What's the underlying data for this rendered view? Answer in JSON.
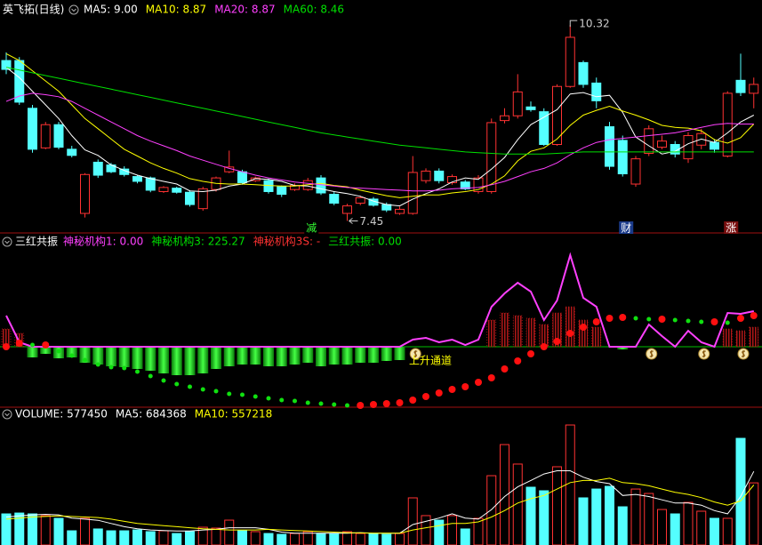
{
  "chart_data": [
    {
      "type": "candlestick",
      "title": "英飞拓(日线)",
      "open": [
        9.8,
        9.8,
        9.1,
        8.52,
        8.86,
        8.5,
        7.56,
        8.31,
        8.27,
        8.21,
        8.1,
        8.08,
        7.88,
        7.93,
        7.87,
        7.63,
        7.91,
        8.17,
        8.17,
        8.04,
        8.04,
        7.95,
        7.91,
        7.91,
        8.08,
        7.84,
        7.56,
        7.71,
        7.77,
        7.69,
        7.56,
        7.56,
        8.04,
        8.18,
        8.01,
        8.02,
        7.88,
        7.88,
        8.92,
        8.99,
        9.12,
        9.05,
        8.57,
        9.42,
        9.77,
        9.47,
        8.83,
        8.63,
        7.99,
        8.44,
        8.53,
        8.57,
        8.36,
        8.56,
        8.6,
        8.4,
        9.51,
        9.32
      ],
      "high": [
        9.92,
        9.85,
        9.15,
        8.9,
        8.9,
        8.55,
        8.15,
        8.35,
        8.3,
        8.25,
        8.12,
        8.1,
        7.96,
        7.95,
        7.9,
        7.95,
        8.1,
        8.48,
        8.2,
        8.1,
        8.07,
        7.97,
        8.0,
        8.08,
        8.12,
        7.88,
        7.7,
        7.82,
        7.8,
        7.72,
        7.66,
        8.4,
        8.22,
        8.22,
        8.13,
        8.05,
        8.12,
        8.95,
        9.1,
        9.6,
        9.2,
        9.1,
        9.45,
        10.32,
        9.8,
        9.55,
        8.9,
        8.7,
        8.4,
        8.85,
        8.7,
        8.62,
        8.75,
        8.8,
        8.65,
        9.35,
        9.9,
        9.55
      ],
      "low": [
        9.6,
        9.15,
        8.45,
        8.5,
        8.5,
        8.38,
        7.5,
        8.08,
        8.15,
        8.1,
        8.0,
        7.87,
        7.86,
        7.85,
        7.66,
        7.6,
        7.88,
        8.15,
        7.98,
        8.02,
        7.85,
        7.8,
        7.89,
        7.89,
        7.83,
        7.68,
        7.45,
        7.68,
        7.66,
        7.58,
        7.54,
        7.54,
        8.0,
        8.0,
        7.98,
        7.9,
        7.85,
        7.85,
        8.88,
        8.95,
        9.05,
        8.55,
        8.55,
        9.4,
        9.4,
        9.1,
        8.2,
        8.1,
        7.95,
        8.4,
        8.5,
        8.38,
        8.3,
        8.5,
        8.45,
        8.38,
        9.28,
        9.1
      ],
      "close": [
        9.67,
        9.19,
        8.5,
        8.86,
        8.53,
        8.41,
        8.13,
        8.12,
        8.17,
        8.13,
        8.03,
        7.9,
        7.94,
        7.87,
        7.69,
        7.92,
        8.08,
        8.24,
        8.01,
        8.08,
        7.88,
        7.84,
        7.97,
        8.04,
        7.86,
        7.71,
        7.67,
        7.79,
        7.68,
        7.61,
        7.62,
        8.16,
        8.18,
        8.04,
        8.1,
        7.92,
        8.08,
        8.89,
        8.99,
        9.34,
        9.08,
        8.57,
        9.42,
        10.14,
        9.45,
        9.21,
        8.25,
        8.14,
        8.36,
        8.8,
        8.62,
        8.43,
        8.7,
        8.73,
        8.5,
        9.32,
        9.33,
        9.45
      ],
      "up_color": "#ff3232",
      "down_color": "#54ffff",
      "ylim": [
        7.3,
        10.4
      ],
      "series": [
        {
          "name": "MA5: 9.00",
          "color": "#ffffff",
          "values": [
            9.7,
            9.55,
            9.35,
            9.15,
            8.95,
            8.7,
            8.49,
            8.41,
            8.27,
            8.19,
            8.12,
            8.07,
            8.03,
            7.99,
            7.89,
            7.88,
            7.9,
            7.96,
            7.99,
            8.07,
            8.06,
            8.03,
            7.97,
            7.96,
            7.92,
            7.88,
            7.85,
            7.81,
            7.74,
            7.69,
            7.67,
            7.77,
            7.85,
            7.92,
            8.02,
            8.08,
            8.06,
            8.21,
            8.38,
            8.64,
            8.86,
            8.97,
            9.08,
            9.31,
            9.33,
            9.27,
            9.29,
            9.04,
            8.68,
            8.55,
            8.43,
            8.47,
            8.58,
            8.65,
            8.6,
            8.74,
            8.9,
            9.0
          ]
        },
        {
          "name": "MA10: 8.87",
          "color": "#ffff00",
          "values": [
            9.9,
            9.8,
            9.65,
            9.5,
            9.35,
            9.15,
            8.95,
            8.8,
            8.65,
            8.5,
            8.4,
            8.3,
            8.22,
            8.15,
            8.07,
            8.03,
            8.0,
            7.99,
            7.99,
            7.98,
            7.97,
            7.96,
            7.96,
            7.98,
            8.0,
            7.97,
            7.95,
            7.9,
            7.86,
            7.82,
            7.79,
            7.81,
            7.83,
            7.83,
            7.86,
            7.88,
            7.91,
            7.99,
            8.11,
            8.33,
            8.47,
            8.52,
            8.65,
            8.85,
            9.0,
            9.07,
            9.13,
            9.06,
            9.0,
            8.93,
            8.85,
            8.82,
            8.81,
            8.77,
            8.64,
            8.59,
            8.67,
            8.87
          ]
        },
        {
          "name": "MA20: 8.87",
          "color": "#ff40ff",
          "values": [
            9.2,
            9.28,
            9.32,
            9.3,
            9.27,
            9.2,
            9.1,
            9.0,
            8.9,
            8.8,
            8.7,
            8.62,
            8.55,
            8.48,
            8.4,
            8.34,
            8.28,
            8.22,
            8.17,
            8.12,
            8.08,
            8.05,
            8.02,
            8.0,
            7.98,
            7.96,
            7.94,
            7.93,
            7.92,
            7.91,
            7.9,
            7.89,
            7.89,
            7.9,
            7.92,
            7.93,
            7.94,
            7.98,
            8.03,
            8.1,
            8.17,
            8.22,
            8.3,
            8.42,
            8.52,
            8.6,
            8.64,
            8.66,
            8.68,
            8.7,
            8.72,
            8.74,
            8.78,
            8.82,
            8.86,
            8.88,
            8.87,
            8.87
          ]
        },
        {
          "name": "MA60: 8.46",
          "color": "#00e000",
          "values": [
            9.7,
            9.66,
            9.62,
            9.58,
            9.54,
            9.5,
            9.46,
            9.42,
            9.38,
            9.34,
            9.3,
            9.26,
            9.22,
            9.18,
            9.14,
            9.1,
            9.06,
            9.02,
            8.98,
            8.94,
            8.9,
            8.86,
            8.82,
            8.78,
            8.74,
            8.71,
            8.68,
            8.65,
            8.62,
            8.59,
            8.56,
            8.54,
            8.52,
            8.5,
            8.48,
            8.46,
            8.45,
            8.44,
            8.43,
            8.43,
            8.43,
            8.43,
            8.44,
            8.45,
            8.46,
            8.46,
            8.46,
            8.46,
            8.46,
            8.46,
            8.46,
            8.46,
            8.46,
            8.46,
            8.46,
            8.46,
            8.46,
            8.46
          ]
        }
      ],
      "event_labels": [
        "减",
        "财",
        "涨"
      ]
    },
    {
      "type": "indicator",
      "title": "三红共振",
      "legend": [
        {
          "label": "神秘机构1: 0.00",
          "color": "#ff40ff"
        },
        {
          "label": "神秘机构3: 225.27",
          "color": "#00e000"
        },
        {
          "label": "神秘机构3S: -",
          "color": "#ff3232"
        },
        {
          "label": "三红共振: 0.00",
          "color": "#00e000"
        }
      ],
      "ylim": [
        -70,
        108
      ],
      "bars": [
        20,
        15,
        -12,
        -8,
        -13,
        -12,
        -18,
        -20,
        -22,
        -23,
        -25,
        -27,
        -30,
        -32,
        -32,
        -30,
        -25,
        -22,
        -20,
        -20,
        -22,
        -22,
        -20,
        -18,
        -22,
        -20,
        -20,
        -18,
        -18,
        -16,
        -15,
        null,
        null,
        null,
        null,
        null,
        null,
        30,
        38,
        35,
        32,
        25,
        38,
        45,
        30,
        22,
        null,
        -3,
        null,
        null,
        null,
        null,
        null,
        null,
        null,
        20,
        18,
        22
      ],
      "bar_up_color": "#c01818",
      "bar_down_color": "#22dd22",
      "line": {
        "color": "#ff40ff",
        "values": [
          35,
          5,
          0,
          0,
          0,
          0,
          0,
          0,
          0,
          0,
          0,
          0,
          0,
          0,
          0,
          0,
          0,
          0,
          0,
          0,
          0,
          0,
          0,
          0,
          0,
          0,
          0,
          0,
          0,
          0,
          0,
          8,
          10,
          5,
          8,
          2,
          8,
          45,
          60,
          72,
          62,
          30,
          52,
          103,
          55,
          45,
          0,
          0,
          0,
          25,
          12,
          0,
          18,
          5,
          0,
          38,
          37,
          40
        ]
      },
      "dots": {
        "up_color": "#ff1010",
        "down_color": "#10e010",
        "values": [
          0,
          4,
          2,
          2,
          -5,
          -10,
          -15,
          -20,
          -23,
          -24,
          -28,
          -33,
          -38,
          -42,
          -45,
          -48,
          -50,
          -53,
          -54,
          -56,
          -58,
          -60,
          -61,
          -63,
          -64,
          -65,
          -66,
          -66,
          -65,
          -64,
          -63,
          -60,
          -56,
          -52,
          -48,
          -45,
          -40,
          -35,
          -25,
          -16,
          -8,
          0,
          6,
          15,
          22,
          28,
          32,
          33,
          32,
          31,
          31,
          30,
          29,
          28,
          28,
          27,
          32,
          35
        ]
      },
      "annotation": "上升通道"
    },
    {
      "type": "volume",
      "legend": [
        {
          "label": "VOLUME: 577450",
          "color": "#ffffff"
        },
        {
          "label": "MA5: 684368",
          "color": "#ffffff"
        },
        {
          "label": "MA10: 557218",
          "color": "#ffff00"
        }
      ],
      "ylim": [
        0,
        1140000
      ],
      "values": [
        289000,
        297000,
        289000,
        273000,
        248000,
        132000,
        248000,
        149000,
        132000,
        132000,
        140000,
        124000,
        132000,
        107000,
        124000,
        165000,
        157000,
        231000,
        132000,
        124000,
        107000,
        99000,
        107000,
        124000,
        107000,
        107000,
        124000,
        107000,
        107000,
        99000,
        107000,
        438000,
        273000,
        231000,
        273000,
        149000,
        248000,
        644000,
        933000,
        752000,
        537000,
        504000,
        727000,
        1115000,
        438000,
        520000,
        545000,
        355000,
        520000,
        479000,
        330000,
        289000,
        396000,
        314000,
        248000,
        248000,
        991000,
        577450
      ],
      "series": [
        {
          "color": "#ffffff",
          "values": [
            260000,
            270000,
            280000,
            285000,
            280000,
            250000,
            240000,
            230000,
            200000,
            170000,
            150000,
            140000,
            135000,
            130000,
            130000,
            140000,
            145000,
            160000,
            160000,
            160000,
            145000,
            120000,
            110000,
            110000,
            110000,
            110000,
            110000,
            115000,
            110000,
            110000,
            110000,
            190000,
            220000,
            250000,
            290000,
            250000,
            240000,
            330000,
            450000,
            540000,
            600000,
            660000,
            690000,
            690000,
            630000,
            590000,
            570000,
            460000,
            470000,
            450000,
            420000,
            390000,
            390000,
            370000,
            320000,
            290000,
            450000,
            684368
          ]
        },
        {
          "color": "#ffff00",
          "values": [
            240000,
            250000,
            260000,
            265000,
            270000,
            265000,
            260000,
            255000,
            240000,
            220000,
            200000,
            190000,
            180000,
            170000,
            160000,
            150000,
            145000,
            140000,
            140000,
            140000,
            145000,
            140000,
            135000,
            130000,
            125000,
            120000,
            115000,
            112000,
            110000,
            110000,
            110000,
            140000,
            160000,
            180000,
            200000,
            200000,
            215000,
            260000,
            320000,
            390000,
            430000,
            460000,
            520000,
            580000,
            600000,
            600000,
            620000,
            580000,
            570000,
            550000,
            520000,
            490000,
            470000,
            440000,
            400000,
            370000,
            410000,
            557218
          ]
        }
      ]
    }
  ]
}
